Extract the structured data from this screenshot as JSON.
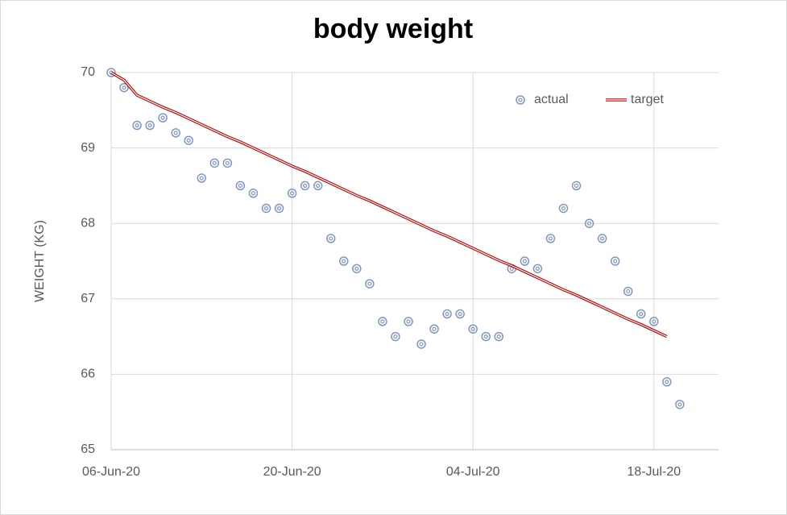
{
  "chart_data": {
    "type": "scatter",
    "title": "body weight",
    "y_label": "WEIGHT (KG)",
    "x": [
      "2020-06-06",
      "2020-06-07",
      "2020-06-08",
      "2020-06-09",
      "2020-06-10",
      "2020-06-11",
      "2020-06-12",
      "2020-06-13",
      "2020-06-14",
      "2020-06-15",
      "2020-06-16",
      "2020-06-17",
      "2020-06-18",
      "2020-06-19",
      "2020-06-20",
      "2020-06-21",
      "2020-06-22",
      "2020-06-23",
      "2020-06-24",
      "2020-06-25",
      "2020-06-26",
      "2020-06-27",
      "2020-06-28",
      "2020-06-29",
      "2020-06-30",
      "2020-07-01",
      "2020-07-02",
      "2020-07-03",
      "2020-07-04",
      "2020-07-05",
      "2020-07-06",
      "2020-07-07",
      "2020-07-08",
      "2020-07-09",
      "2020-07-10",
      "2020-07-11",
      "2020-07-12",
      "2020-07-13",
      "2020-07-14",
      "2020-07-15",
      "2020-07-16",
      "2020-07-17",
      "2020-07-18",
      "2020-07-19",
      "2020-07-20"
    ],
    "series": [
      {
        "name": "actual",
        "kind": "markers",
        "color": "#7f96c4",
        "values": [
          70.0,
          69.8,
          69.3,
          69.3,
          69.4,
          69.2,
          69.1,
          68.6,
          68.8,
          68.8,
          68.5,
          68.4,
          68.2,
          68.2,
          68.4,
          68.5,
          68.5,
          67.8,
          67.5,
          67.4,
          67.2,
          66.7,
          66.5,
          66.7,
          66.4,
          66.6,
          66.8,
          66.8,
          66.6,
          66.5,
          66.5,
          67.4,
          67.5,
          67.4,
          67.8,
          68.2,
          68.5,
          68.0,
          67.8,
          67.5,
          67.1,
          66.8,
          66.7,
          65.9,
          65.6
        ]
      },
      {
        "name": "target",
        "kind": "line",
        "color": "#c00000",
        "values": [
          70.0,
          69.9,
          69.7,
          69.62,
          69.54,
          69.47,
          69.39,
          69.31,
          69.23,
          69.15,
          69.08,
          69.0,
          68.92,
          68.84,
          68.76,
          68.69,
          68.61,
          68.53,
          68.45,
          68.37,
          68.3,
          68.22,
          68.14,
          68.06,
          67.98,
          67.9,
          67.83,
          67.75,
          67.67,
          67.59,
          67.51,
          67.44,
          67.36,
          67.28,
          67.2,
          67.12,
          67.05,
          66.97,
          66.89,
          66.81,
          66.73,
          66.66,
          66.58,
          66.5,
          null
        ]
      }
    ],
    "xlim": [
      "2020-06-06",
      "2020-07-23"
    ],
    "xticks": [
      {
        "value": "2020-06-06",
        "label": "06-Jun-20"
      },
      {
        "value": "2020-06-20",
        "label": "20-Jun-20"
      },
      {
        "value": "2020-07-04",
        "label": "04-Jul-20"
      },
      {
        "value": "2020-07-18",
        "label": "18-Jul-20"
      }
    ],
    "ylim": [
      65,
      70
    ],
    "yticks": [
      65,
      66,
      67,
      68,
      69,
      70
    ],
    "grid": true,
    "legend": "top-right"
  }
}
